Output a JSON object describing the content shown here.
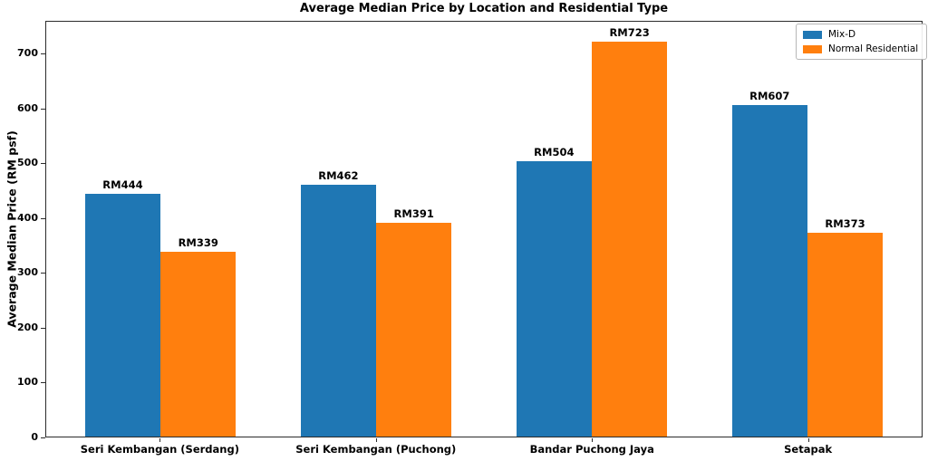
{
  "chart_data": {
    "type": "bar",
    "title": "Average Median Price by Location and Residential Type",
    "xlabel": "",
    "ylabel": "Average Median Price (RM psf)",
    "categories": [
      "Seri Kembangan (Serdang)",
      "Seri Kembangan (Puchong)",
      "Bandar Puchong Jaya",
      "Setapak"
    ],
    "series": [
      {
        "name": "Mix-D",
        "color": "#1f77b4",
        "values": [
          444,
          462,
          504,
          607
        ],
        "bar_labels": [
          "RM444",
          "RM462",
          "RM504",
          "RM607"
        ]
      },
      {
        "name": "Normal Residential",
        "color": "#ff7f0e",
        "values": [
          339,
          391,
          723,
          373
        ],
        "bar_labels": [
          "RM339",
          "RM391",
          "RM723",
          "RM373"
        ]
      }
    ],
    "yticks": [
      0,
      100,
      200,
      300,
      400,
      500,
      600,
      700
    ],
    "ylim": [
      0,
      760
    ],
    "bar_width": 0.35,
    "grid": false,
    "legend_position": "upper right",
    "currency_prefix": "RM",
    "background_color": "#ffffff"
  }
}
